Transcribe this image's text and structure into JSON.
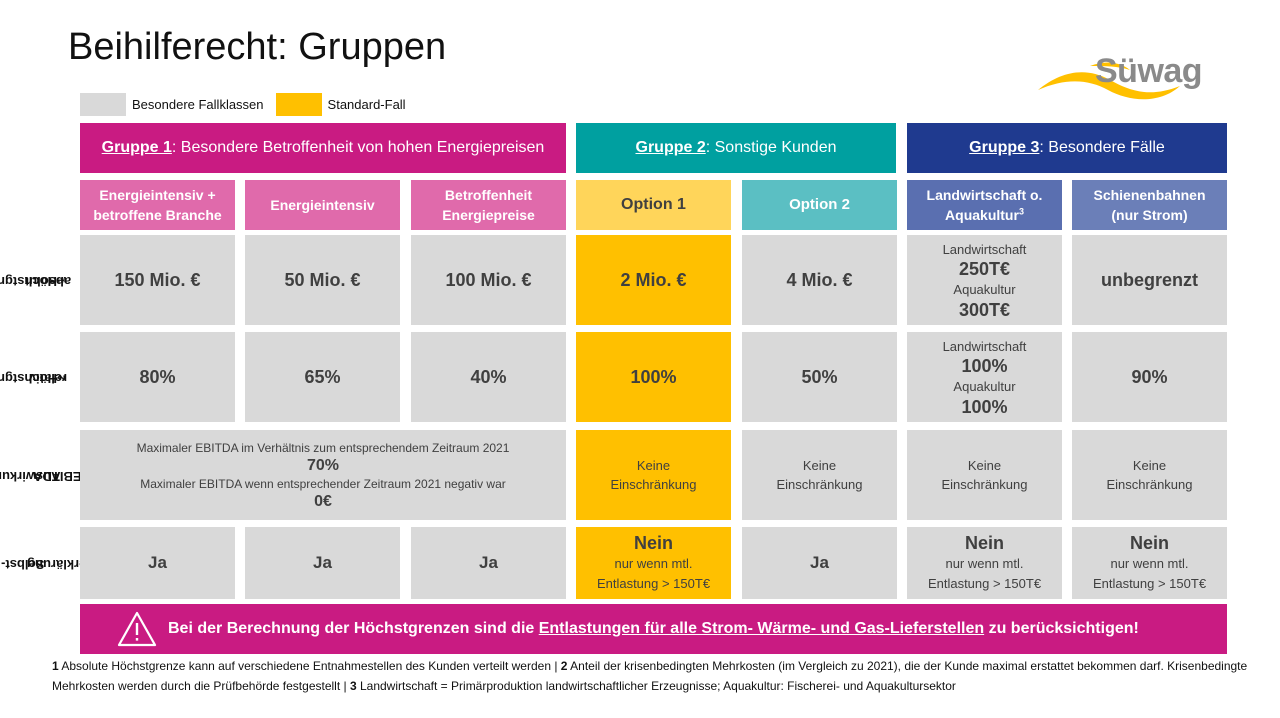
{
  "title": "Beihilferecht: Gruppen",
  "logo": {
    "text": "Süwag"
  },
  "legend": [
    {
      "label": "Besondere Fallklassen",
      "color": "#d9d9d9"
    },
    {
      "label": "Standard-Fall",
      "color": "#ffc000"
    }
  ],
  "groups": [
    {
      "name": "Gruppe 1",
      "desc": ": Besondere Betroffenheit von hohen Energiepreisen",
      "color": "#c91b82"
    },
    {
      "name": "Gruppe 2",
      "desc": ": Sonstige Kunden",
      "color": "#00a0a0"
    },
    {
      "name": "Gruppe 3",
      "desc": ": Besondere Fälle",
      "color": "#1f3a8f"
    }
  ],
  "subheaders": [
    {
      "line1": "Energieintensiv +",
      "line2": "betroffene Branche",
      "color": "#e06aab"
    },
    {
      "line1": "Energieintensiv",
      "line2": "",
      "color": "#e06aab"
    },
    {
      "line1": "Betroffenheit",
      "line2": "Energiepreise",
      "color": "#e06aab"
    },
    {
      "line1": "Option 1",
      "line2": "",
      "color": "#ffd55a"
    },
    {
      "line1": "Option 2",
      "line2": "",
      "color": "#5bbfc3"
    },
    {
      "line1": "Landwirtschaft o.",
      "line2": "Aquakultur",
      "sup": "3",
      "color": "#5a6fb0"
    },
    {
      "line1": "Schienenbahnen",
      "line2": "(nur Strom)",
      "color": "#6b7fb8"
    }
  ],
  "row_labels": [
    {
      "line1": "Höchstgrenze",
      "line2": "absolut",
      "sup": "1"
    },
    {
      "line1": "Höchstgrenze",
      "line2": "relativ",
      "sup": "2"
    },
    {
      "line1": "Auswirkung",
      "line2": "EBITDA"
    },
    {
      "line1": "Selbst-",
      "line2": "erklärung"
    }
  ],
  "row_absolut": {
    "c1": "150 Mio. €",
    "c2": "50 Mio. €",
    "c3": "100 Mio. €",
    "c4": "2 Mio. €",
    "c5": "4 Mio. €",
    "c6": {
      "l1": "Landwirtschaft",
      "v1": "250T€",
      "l2": "Aquakultur",
      "v2": "300T€"
    },
    "c7": "unbegrenzt"
  },
  "row_relativ": {
    "c1": "80%",
    "c2": "65%",
    "c3": "40%",
    "c4": "100%",
    "c5": "50%",
    "c6": {
      "l1": "Landwirtschaft",
      "v1": "100%",
      "l2": "Aquakultur",
      "v2": "100%"
    },
    "c7": "90%"
  },
  "row_ebitda": {
    "merged": {
      "t1": "Maximaler EBITDA im Verhältnis zum entsprechendem Zeitraum 2021",
      "v1": "70%",
      "t2": "Maximaler EBITDA wenn entsprechender Zeitraum 2021 negativ war",
      "v2": "0€"
    },
    "none_l1": "Keine",
    "none_l2": "Einschränkung"
  },
  "row_selbst": {
    "ja": "Ja",
    "nein": "Nein",
    "nein_l1": "nur wenn mtl.",
    "nein_l2": "Entlastung > 150T€"
  },
  "warning": {
    "pre": "Bei der Berechnung der Höchstgrenzen sind die ",
    "link": "Entlastungen für alle Strom- Wärme- und Gas-Lieferstellen",
    "post": " zu berücksichtigen!"
  },
  "footnote": {
    "n1": "1",
    "t1": " Absolute Höchstgrenze kann auf verschiedene Entnahmestellen des Kunden verteilt werden | ",
    "n2": "2",
    "t2": " Anteil der krisenbedingten Mehrkosten (im Vergleich zu 2021), die der Kunde maximal erstattet bekommen darf. Krisenbedingte Mehrkosten werden durch die Prüfbehörde festgestellt | ",
    "n3": "3",
    "t3": " Landwirtschaft = Primärproduktion landwirtschaftlicher Erzeugnisse; Aquakultur: Fischerei- und Aquakultursektor"
  }
}
